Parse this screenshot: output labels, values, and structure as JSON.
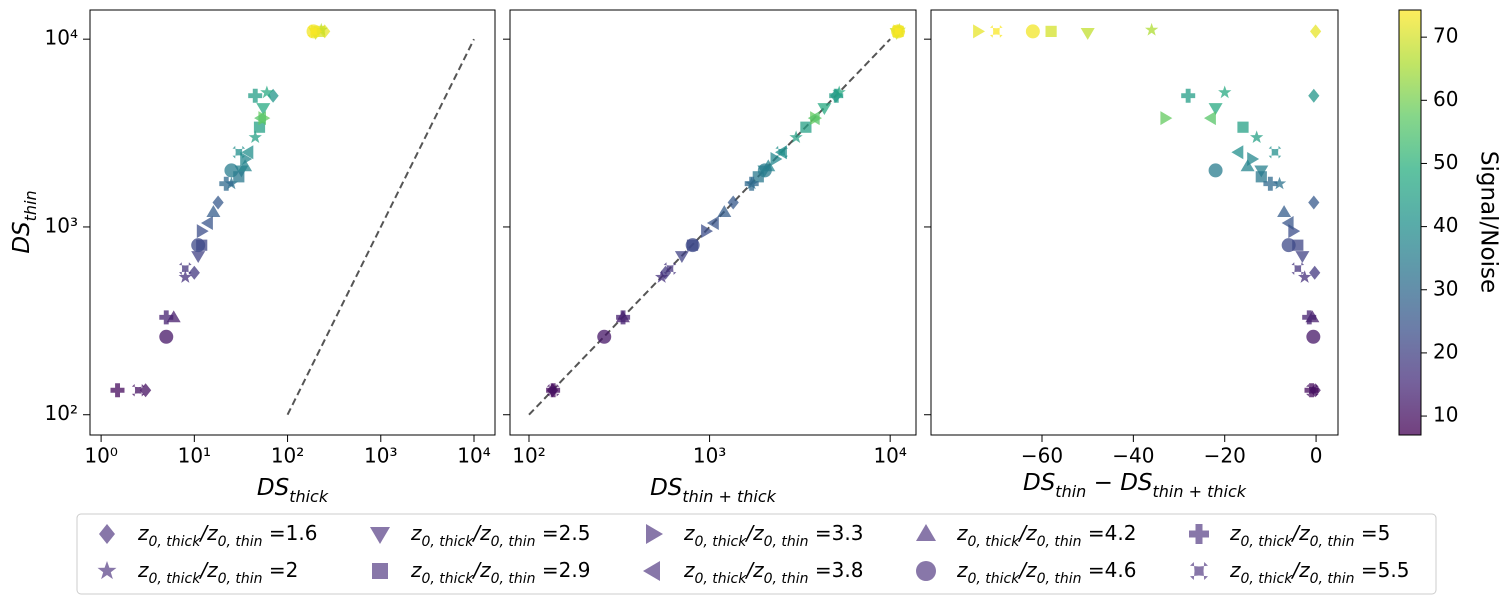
{
  "chart_data": {
    "type": "scatter",
    "ylabel": [
      [
        "DS",
        "thin"
      ]
    ],
    "ylim": [
      78,
      14300
    ],
    "log_y": true,
    "yticks": [
      {
        "value": 100,
        "label": "10²"
      },
      {
        "value": 1000,
        "label": "10³"
      },
      {
        "value": 10000,
        "label": "10⁴"
      }
    ],
    "legend_label": {
      "z1": "z",
      "sub1": "0, thick",
      "z2": "/z",
      "sub2": "0, thin"
    },
    "legend_color": "#7b68a0",
    "series": [
      {
        "name": " =1.6",
        "marker": "diamond",
        "values": [
          135,
          570,
          1350,
          5000,
          11000
        ],
        "snr": [
          10,
          18,
          26,
          42,
          72
        ]
      },
      {
        "name": " =2",
        "marker": "star",
        "values": [
          540,
          1700,
          3000,
          5200,
          11200
        ],
        "snr": [
          16,
          32,
          45,
          48,
          66
        ]
      },
      {
        "name": " =2.5",
        "marker": "triangle-down",
        "values": [
          700,
          2000,
          4300,
          10800
        ],
        "snr": [
          20,
          36,
          48,
          68
        ]
      },
      {
        "name": " =2.9",
        "marker": "square",
        "values": [
          800,
          1850,
          3400,
          11000
        ],
        "snr": [
          21,
          34,
          45,
          70
        ]
      },
      {
        "name": " =3.3",
        "marker": "triangle-right",
        "values": [
          950,
          2300,
          3800,
          11000
        ],
        "snr": [
          23,
          38,
          58,
          72
        ]
      },
      {
        "name": " =3.8",
        "marker": "triangle-left",
        "values": [
          1050,
          2500,
          3800
        ],
        "snr": [
          25,
          40,
          56
        ]
      },
      {
        "name": " =4.2",
        "marker": "triangle-up",
        "values": [
          330,
          1200,
          2100
        ],
        "snr": [
          12,
          27,
          37
        ]
      },
      {
        "name": " =4.6",
        "marker": "circle",
        "values": [
          260,
          800,
          2000,
          11000
        ],
        "snr": [
          11,
          22,
          35,
          73
        ]
      },
      {
        "name": " =5",
        "marker": "plus",
        "values": [
          135,
          330,
          1700,
          5000
        ],
        "snr": [
          9,
          13,
          30,
          44
        ]
      },
      {
        "name": " =5.5",
        "marker": "x",
        "values": [
          135,
          600,
          2500,
          11000
        ],
        "snr": [
          10,
          17,
          40,
          74
        ]
      }
    ],
    "panels": [
      {
        "xlabel": [
          [
            "DS",
            "thick"
          ]
        ],
        "log_x": true,
        "xlim": [
          0.76,
          16800
        ],
        "xticks": [
          {
            "value": 1,
            "label": "10⁰"
          },
          {
            "value": 10,
            "label": "10¹"
          },
          {
            "value": 100,
            "label": "10²"
          },
          {
            "value": 1000,
            "label": "10³"
          },
          {
            "value": 10000,
            "label": "10⁴"
          }
        ],
        "reference_line": {
          "x": [
            100,
            10000
          ],
          "y": [
            100,
            10000
          ]
        },
        "x": [
          [
            3.0,
            10,
            18,
            70,
            250
          ],
          [
            8,
            25,
            45,
            60,
            230
          ],
          [
            11,
            32,
            55,
            200
          ],
          [
            12,
            30,
            50,
            220
          ],
          [
            12,
            35,
            55,
            200
          ],
          [
            14,
            38,
            52
          ],
          [
            6,
            16,
            35
          ],
          [
            5,
            11,
            25,
            190
          ],
          [
            1.5,
            5,
            22,
            45
          ],
          [
            2.5,
            8,
            30,
            190
          ]
        ]
      },
      {
        "xlabel": [
          [
            "DS",
            "thin + thick"
          ]
        ],
        "log_x": true,
        "xlim": [
          78.5,
          13900
        ],
        "xticks": [
          {
            "value": 100,
            "label": "10²"
          },
          {
            "value": 1000,
            "label": "10³"
          },
          {
            "value": 10000,
            "label": "10⁴"
          }
        ],
        "reference_line": {
          "x": [
            100,
            10000
          ],
          "y": [
            100,
            10000
          ]
        },
        "x": [
          [
            135,
            570,
            1351,
            5001,
            11000
          ],
          [
            543,
            1708,
            3013,
            5220,
            11236
          ],
          [
            703,
            2012,
            4322,
            10850
          ],
          [
            804,
            1862,
            3416,
            11058
          ],
          [
            955,
            2314,
            3833,
            11074
          ],
          [
            1056,
            2517,
            3823
          ],
          [
            331,
            1207,
            2115
          ],
          [
            261,
            806,
            2022,
            11062
          ],
          [
            136,
            332,
            1710,
            5028
          ],
          [
            136,
            604,
            2509,
            11070
          ]
        ]
      },
      {
        "xlabel": [
          [
            "DS",
            "thin"
          ],
          [
            " − DS",
            "thin + thick"
          ]
        ],
        "log_x": false,
        "xlim": [
          -84.3,
          4.8
        ],
        "xticks": [
          {
            "value": -60,
            "label": "−60"
          },
          {
            "value": -40,
            "label": "−40"
          },
          {
            "value": -20,
            "label": "−20"
          },
          0
        ],
        "x": [
          [
            -0.2,
            -0.3,
            -0.5,
            -0.5,
            -0.1
          ],
          [
            -2.5,
            -8,
            -13,
            -20,
            -36
          ],
          [
            -3,
            -12,
            -22,
            -50
          ],
          [
            -4,
            -12,
            -16,
            -58
          ],
          [
            -5,
            -14,
            -33,
            -74
          ],
          [
            -6,
            -17,
            -23
          ],
          [
            -0.8,
            -7,
            -15
          ],
          [
            -0.6,
            -6,
            -22,
            -62
          ],
          [
            -1,
            -1.5,
            -10,
            -28
          ],
          [
            -0.8,
            -4,
            -9,
            -70
          ]
        ]
      }
    ],
    "colorbar": {
      "label": "Signal/Noise",
      "colormap": "viridis",
      "lim": [
        7,
        74.3
      ],
      "ticks": [
        10,
        20,
        30,
        40,
        50,
        60,
        70
      ]
    }
  }
}
